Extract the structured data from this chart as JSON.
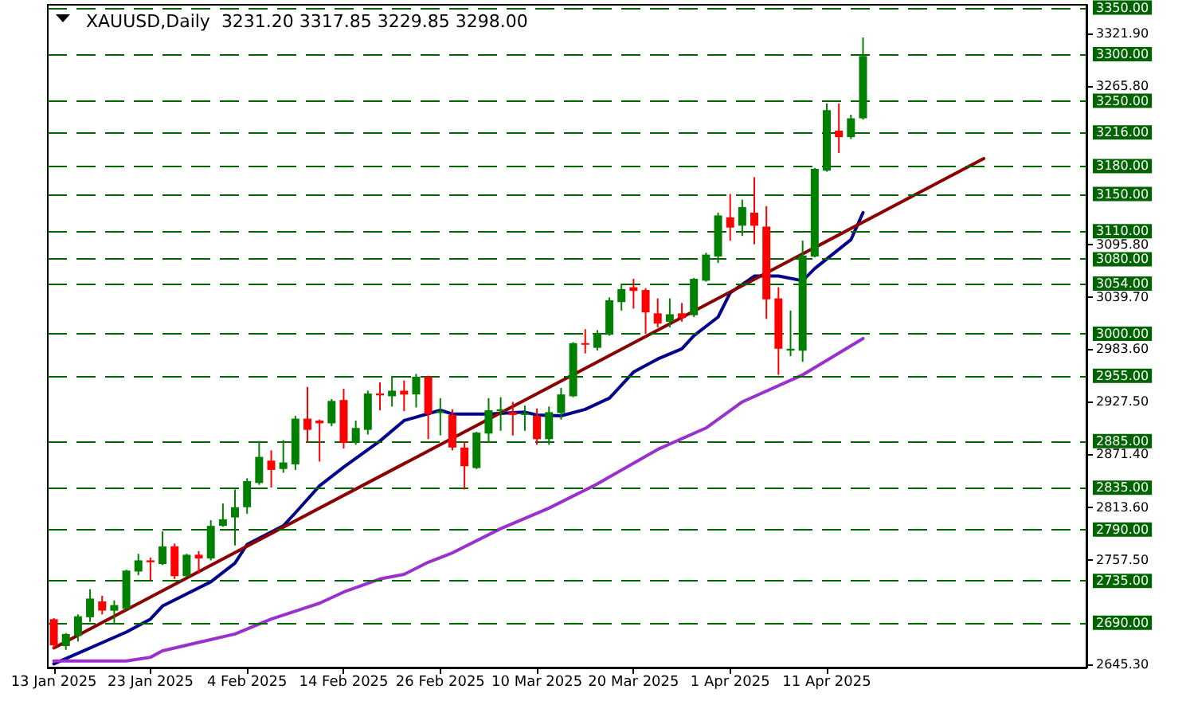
{
  "chart_data": {
    "type": "candlestick",
    "title": "XAUUSD,Daily  3231.20 3317.85 3229.85 3298.00",
    "categories": [
      "13 Jan 2025",
      null,
      null,
      null,
      null,
      null,
      null,
      null,
      "23 Jan 2025",
      null,
      null,
      null,
      null,
      null,
      null,
      null,
      "4 Feb 2025",
      null,
      null,
      null,
      null,
      null,
      null,
      null,
      "14 Feb 2025",
      null,
      null,
      null,
      null,
      null,
      null,
      null,
      "26 Feb 2025",
      null,
      null,
      null,
      null,
      null,
      null,
      null,
      "10 Mar 2025",
      null,
      null,
      null,
      null,
      null,
      null,
      null,
      "20 Mar 2025",
      null,
      null,
      null,
      null,
      null,
      null,
      null,
      "1 Apr 2025",
      null,
      null,
      null,
      null,
      null,
      null,
      null,
      "11 Apr 2025",
      null,
      null,
      null,
      null,
      null,
      null,
      null,
      null,
      null,
      null,
      null,
      null,
      null,
      null,
      null,
      null,
      null,
      null,
      null,
      null,
      null
    ],
    "ohlc": [
      [
        2694,
        2695,
        2662,
        2666
      ],
      [
        2665,
        2679,
        2661,
        2678
      ],
      [
        2676,
        2699,
        2670,
        2697
      ],
      [
        2696,
        2726,
        2691,
        2716
      ],
      [
        2713,
        2719,
        2699,
        2703
      ],
      [
        2703,
        2714,
        2690,
        2709
      ],
      [
        2705,
        2747,
        2704,
        2746
      ],
      [
        2745,
        2764,
        2741,
        2757
      ],
      [
        2757,
        2760,
        2736,
        2755
      ],
      [
        2753,
        2788,
        2752,
        2772
      ],
      [
        2772,
        2775,
        2737,
        2740
      ],
      [
        2740,
        2764,
        2739,
        2763
      ],
      [
        2763,
        2767,
        2743,
        2759
      ],
      [
        2759,
        2800,
        2757,
        2794
      ],
      [
        2794,
        2818,
        2793,
        2801
      ],
      [
        2803,
        2833,
        2773,
        2814
      ],
      [
        2814,
        2845,
        2807,
        2842
      ],
      [
        2840,
        2885,
        2838,
        2868
      ],
      [
        2864,
        2875,
        2835,
        2854
      ],
      [
        2855,
        2886,
        2851,
        2862
      ],
      [
        2860,
        2912,
        2854,
        2909
      ],
      [
        2909,
        2943,
        2883,
        2897
      ],
      [
        2907,
        2908,
        2863,
        2904
      ],
      [
        2904,
        2930,
        2901,
        2928
      ],
      [
        2929,
        2941,
        2877,
        2883
      ],
      [
        2883,
        2907,
        2881,
        2899
      ],
      [
        2897,
        2939,
        2892,
        2936
      ],
      [
        2936,
        2948,
        2918,
        2934
      ],
      [
        2933,
        2955,
        2922,
        2939
      ],
      [
        2939,
        2950,
        2917,
        2935
      ],
      [
        2935,
        2957,
        2921,
        2954
      ],
      [
        2954,
        2955,
        2887,
        2914
      ],
      [
        2915,
        2931,
        2891,
        2917
      ],
      [
        2913,
        2919,
        2875,
        2878
      ],
      [
        2878,
        2884,
        2833,
        2858
      ],
      [
        2856,
        2895,
        2855,
        2894
      ],
      [
        2893,
        2931,
        2883,
        2918
      ],
      [
        2917,
        2932,
        2896,
        2919
      ],
      [
        2916,
        2927,
        2891,
        2913
      ],
      [
        2913,
        2923,
        2896,
        2915
      ],
      [
        2912,
        2920,
        2881,
        2887
      ],
      [
        2887,
        2922,
        2881,
        2916
      ],
      [
        2915,
        2942,
        2908,
        2935
      ],
      [
        2933,
        2991,
        2932,
        2990
      ],
      [
        2990,
        3005,
        2979,
        2989
      ],
      [
        2985,
        3004,
        2982,
        3001
      ],
      [
        2999,
        3039,
        2998,
        3036
      ],
      [
        3034,
        3054,
        3025,
        3048
      ],
      [
        3050,
        3059,
        3027,
        3046
      ],
      [
        3047,
        3049,
        3000,
        3023
      ],
      [
        3022,
        3038,
        3007,
        3011
      ],
      [
        3013,
        3038,
        3007,
        3021
      ],
      [
        3022,
        3033,
        3013,
        3017
      ],
      [
        3020,
        3060,
        3018,
        3059
      ],
      [
        3057,
        3087,
        3056,
        3085
      ],
      [
        3083,
        3130,
        3076,
        3127
      ],
      [
        3125,
        3150,
        3100,
        3114
      ],
      [
        3116,
        3144,
        3105,
        3136
      ],
      [
        3130,
        3168,
        3096,
        3116
      ],
      [
        3115,
        3137,
        3016,
        3037
      ],
      [
        3038,
        3050,
        2956,
        2984
      ],
      [
        2982,
        3025,
        2976,
        2984
      ],
      [
        2982,
        3100,
        2970,
        3084
      ],
      [
        3083,
        3178,
        3082,
        3177
      ],
      [
        3175,
        3247,
        3174,
        3240
      ],
      [
        3218,
        3247,
        3194,
        3211
      ],
      [
        3211,
        3235,
        3209,
        3231.2
      ],
      [
        3231.2,
        3317.85,
        3229.85,
        3298
      ],
      null,
      null,
      null,
      null,
      null,
      null,
      null,
      null,
      null,
      null,
      null,
      null,
      null,
      null,
      null,
      null,
      null,
      null
    ],
    "colors": [
      "#ff0000",
      "#008000",
      "#008000",
      "#008000",
      "#ff0000",
      "#008000",
      "#008000",
      "#008000",
      "#ff0000",
      "#008000",
      "#ff0000",
      "#008000",
      "#ff0000",
      "#008000",
      "#008000",
      "#008000",
      "#008000",
      "#008000",
      "#ff0000",
      "#008000",
      "#008000",
      "#ff0000",
      "#ff0000",
      "#008000",
      "#ff0000",
      "#008000",
      "#008000",
      "#ff0000",
      "#008000",
      "#ff0000",
      "#008000",
      "#ff0000",
      "#008000",
      "#ff0000",
      "#ff0000",
      "#008000",
      "#008000",
      "#008000",
      "#ff0000",
      "#008000",
      "#ff0000",
      "#008000",
      "#008000",
      "#008000",
      "#ff0000",
      "#008000",
      "#008000",
      "#008000",
      "#ff0000",
      "#ff0000",
      "#ff0000",
      "#008000",
      "#ff0000",
      "#008000",
      "#008000",
      "#008000",
      "#ff0000",
      "#008000",
      "#ff0000",
      "#ff0000",
      "#ff0000",
      "#008000",
      "#008000",
      "#008000",
      "#008000",
      "#ff0000",
      "#008000",
      "#008000",
      null,
      null,
      null,
      null,
      null,
      null,
      null,
      null,
      null,
      null,
      null,
      null,
      null,
      null,
      null,
      null,
      null,
      null
    ],
    "series": [
      {
        "type": "line",
        "color": "#00008b",
        "values": [
          2646,
          null,
          null,
          null,
          null,
          null,
          2680,
          null,
          2694,
          2708,
          null,
          null,
          null,
          2734,
          null,
          2754,
          2774,
          null,
          null,
          2794,
          2808,
          null,
          2837,
          null,
          2857,
          null,
          null,
          2885,
          null,
          2907,
          null,
          null,
          2918,
          2914,
          null,
          null,
          2914,
          null,
          null,
          2916,
          2913,
          null,
          2912,
          null,
          2919,
          null,
          2931,
          null,
          2959,
          null,
          2973,
          null,
          2984,
          2998,
          null,
          3018,
          3044,
          null,
          3062,
          null,
          3062,
          null,
          3057,
          3070,
          null,
          null,
          3101,
          3130,
          null,
          null,
          null,
          null,
          null,
          null,
          null,
          null,
          null,
          null,
          null,
          null,
          null,
          null,
          null,
          null,
          null,
          null
        ]
      },
      {
        "type": "line",
        "color": "#9932cc",
        "values": [
          2649,
          null,
          null,
          null,
          null,
          null,
          2649,
          null,
          2653,
          2660,
          null,
          null,
          null,
          null,
          null,
          2678,
          null,
          null,
          2694,
          null,
          null,
          null,
          2711,
          null,
          2723,
          null,
          null,
          2737,
          null,
          2742,
          null,
          2755,
          null,
          2765,
          null,
          null,
          null,
          2791,
          null,
          null,
          null,
          2813,
          null,
          null,
          null,
          2839,
          null,
          null,
          null,
          null,
          2876,
          null,
          null,
          null,
          2899,
          null,
          null,
          2927,
          null,
          null,
          null,
          null,
          2956,
          null,
          null,
          null,
          null,
          2995,
          null,
          null,
          null,
          null,
          null,
          null,
          null,
          null,
          null,
          null,
          null,
          null,
          null,
          null,
          null,
          null,
          null,
          null
        ]
      },
      {
        "type": "line",
        "color": "#8b0000",
        "values": [
          2663,
          null,
          null,
          null,
          null,
          null,
          null,
          null,
          null,
          null,
          null,
          null,
          null,
          null,
          null,
          null,
          null,
          null,
          null,
          null,
          null,
          null,
          null,
          null,
          null,
          null,
          null,
          null,
          null,
          null,
          null,
          null,
          null,
          null,
          null,
          null,
          null,
          null,
          null,
          null,
          null,
          null,
          null,
          null,
          null,
          null,
          null,
          null,
          null,
          null,
          null,
          null,
          null,
          null,
          null,
          null,
          null,
          null,
          null,
          null,
          null,
          null,
          null,
          null,
          null,
          null,
          null,
          null,
          null,
          null,
          null,
          null,
          null,
          null,
          null,
          null,
          null,
          3188,
          null,
          null,
          null,
          null,
          null,
          null,
          null,
          null
        ]
      }
    ],
    "ylim": [
      2642,
      3353
    ],
    "yticks": [
      {
        "value": 3321.9,
        "label": "3321.90"
      },
      {
        "value": 3265.8,
        "label": "3265.80"
      },
      {
        "value": 3095.8,
        "label": "3095.80"
      },
      {
        "value": 3039.7,
        "label": "3039.70"
      },
      {
        "value": 2983.6,
        "label": "2983.60"
      },
      {
        "value": 2927.5,
        "label": "2927.50"
      },
      {
        "value": 2871.4,
        "label": "2871.40"
      },
      {
        "value": 2813.6,
        "label": "2813.60"
      },
      {
        "value": 2757.5,
        "label": "2757.50"
      },
      {
        "value": 2645.3,
        "label": "2645.30"
      }
    ],
    "ref_lines": [
      {
        "axis": "y",
        "value": 3350,
        "label": "3350.00",
        "color": "#006400",
        "line_style": "dashed"
      },
      {
        "axis": "y",
        "value": 3300,
        "label": "3300.00",
        "color": "#006400",
        "line_style": "dashed"
      },
      {
        "axis": "y",
        "value": 3250,
        "label": "3250.00",
        "color": "#006400",
        "line_style": "dashed"
      },
      {
        "axis": "y",
        "value": 3216,
        "label": "3216.00",
        "color": "#006400",
        "line_style": "dashed"
      },
      {
        "axis": "y",
        "value": 3180,
        "label": "3180.00",
        "color": "#006400",
        "line_style": "dashed"
      },
      {
        "axis": "y",
        "value": 3150,
        "label": "3150.00",
        "color": "#006400",
        "line_style": "dashed"
      },
      {
        "axis": "y",
        "value": 3110,
        "label": "3110.00",
        "color": "#006400",
        "line_style": "dashed"
      },
      {
        "axis": "y",
        "value": 3080,
        "label": "3080.00",
        "color": "#006400",
        "line_style": "dashed"
      },
      {
        "axis": "y",
        "value": 3054,
        "label": "3054.00",
        "color": "#006400",
        "line_style": "dashed"
      },
      {
        "axis": "y",
        "value": 3000,
        "label": "3000.00",
        "color": "#006400",
        "line_style": "dashed"
      },
      {
        "axis": "y",
        "value": 2955,
        "label": "2955.00",
        "color": "#006400",
        "line_style": "dashed"
      },
      {
        "axis": "y",
        "value": 2885,
        "label": "2885.00",
        "color": "#006400",
        "line_style": "dashed"
      },
      {
        "axis": "y",
        "value": 2835,
        "label": "2835.00",
        "color": "#006400",
        "line_style": "dashed"
      },
      {
        "axis": "y",
        "value": 2790,
        "label": "2790.00",
        "color": "#006400",
        "line_style": "dashed"
      },
      {
        "axis": "y",
        "value": 2735,
        "label": "2735.00",
        "color": "#006400",
        "line_style": "dashed"
      },
      {
        "axis": "y",
        "value": 2690,
        "label": "2690.00",
        "color": "#006400",
        "line_style": "dashed"
      }
    ]
  }
}
